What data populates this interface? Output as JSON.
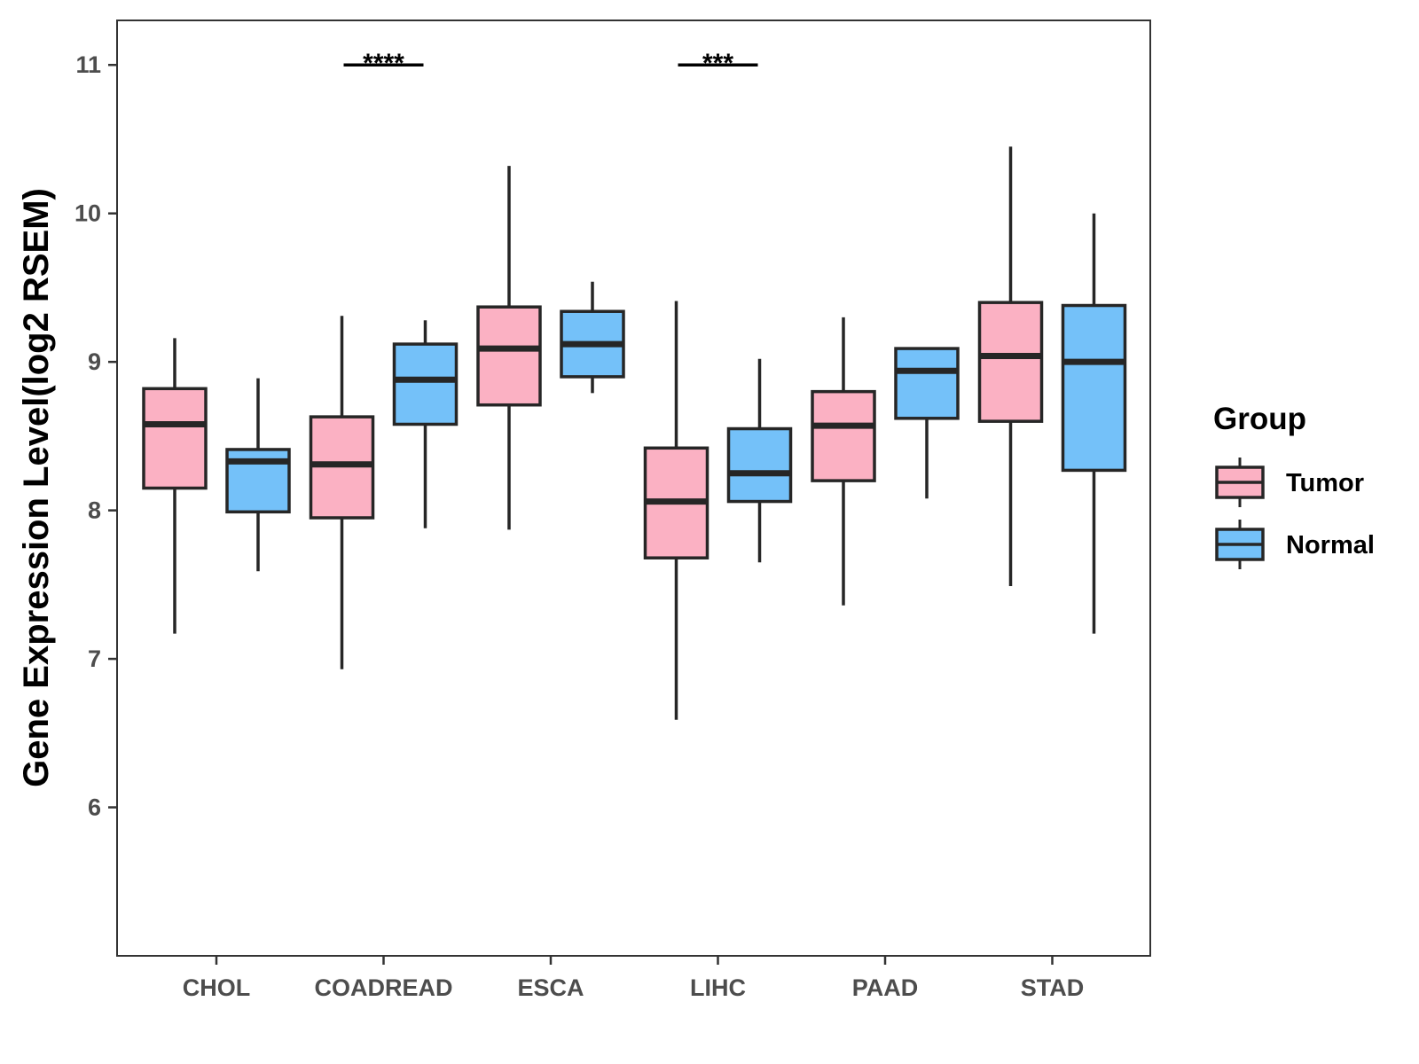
{
  "chart_data": {
    "type": "box",
    "title": "",
    "xlabel": "",
    "ylabel": "Gene Expression Level(log2 RSEM)",
    "ylim": [
      5.0,
      11.3
    ],
    "yticks": [
      6,
      7,
      8,
      9,
      10,
      11
    ],
    "grid": false,
    "legend": {
      "title": "Group",
      "placement": "right"
    },
    "categories": [
      "CHOL",
      "COADREAD",
      "ESCA",
      "LIHC",
      "PAAD",
      "STAD"
    ],
    "series": [
      {
        "name": "Tumor",
        "color": "#FBB1C3",
        "boxes": [
          {
            "min": 7.17,
            "q1": 8.15,
            "median": 8.58,
            "q3": 8.82,
            "max": 9.16
          },
          {
            "min": 6.93,
            "q1": 7.95,
            "median": 8.31,
            "q3": 8.63,
            "max": 9.31
          },
          {
            "min": 7.87,
            "q1": 8.71,
            "median": 9.09,
            "q3": 9.37,
            "max": 10.32
          },
          {
            "min": 6.59,
            "q1": 7.68,
            "median": 8.06,
            "q3": 8.42,
            "max": 9.41
          },
          {
            "min": 7.36,
            "q1": 8.2,
            "median": 8.57,
            "q3": 8.8,
            "max": 9.3
          },
          {
            "min": 7.49,
            "q1": 8.6,
            "median": 9.04,
            "q3": 9.4,
            "max": 10.45
          }
        ]
      },
      {
        "name": "Normal",
        "color": "#74C1F9",
        "boxes": [
          {
            "min": 7.59,
            "q1": 7.99,
            "median": 8.33,
            "q3": 8.41,
            "max": 8.89
          },
          {
            "min": 7.88,
            "q1": 8.58,
            "median": 8.88,
            "q3": 9.12,
            "max": 9.28
          },
          {
            "min": 8.79,
            "q1": 8.9,
            "median": 9.12,
            "q3": 9.34,
            "max": 9.54
          },
          {
            "min": 7.65,
            "q1": 8.06,
            "median": 8.25,
            "q3": 8.55,
            "max": 9.02
          },
          {
            "min": 8.08,
            "q1": 8.62,
            "median": 8.94,
            "q3": 9.09,
            "max": 9.09
          },
          {
            "min": 7.17,
            "q1": 8.27,
            "median": 9.0,
            "q3": 9.38,
            "max": 10.0
          }
        ]
      }
    ],
    "annotations": [
      {
        "category": "COADREAD",
        "label": "****",
        "y": 11.0
      },
      {
        "category": "LIHC",
        "label": "***",
        "y": 11.0
      }
    ]
  }
}
